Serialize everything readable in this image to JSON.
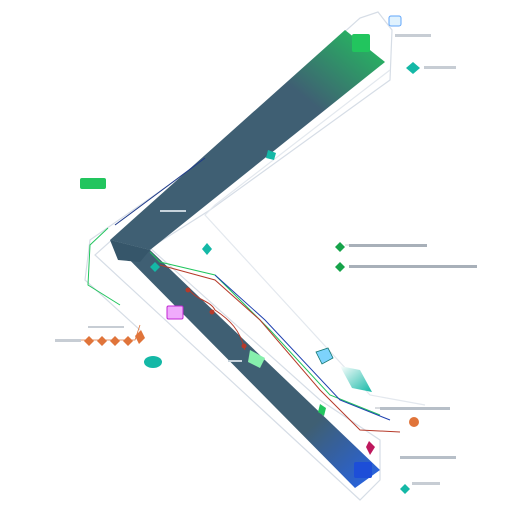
{
  "diagram": {
    "colors": {
      "band": "#3f5f73",
      "band_dark": "#36566a",
      "outline": "#d6dde6",
      "green": "#22c55e",
      "teal": "#14b8a6",
      "blue": "#2563eb",
      "orange": "#e0743a",
      "red": "#b63a2a",
      "magenta": "#c026d3",
      "navy": "#1e3a8a"
    },
    "labels": {
      "top_right_1": "",
      "top_right_2": "",
      "mid_right_1": "",
      "mid_right_2": "",
      "mid_left_1": "",
      "mid_left_2": "",
      "bottom_right_1": "",
      "bottom_right_2": "",
      "bottom_right_3": "",
      "band_label_1": "",
      "band_label_2": ""
    },
    "icons": [
      "node-icon",
      "diamond-icon",
      "square-icon",
      "tag-icon"
    ]
  }
}
